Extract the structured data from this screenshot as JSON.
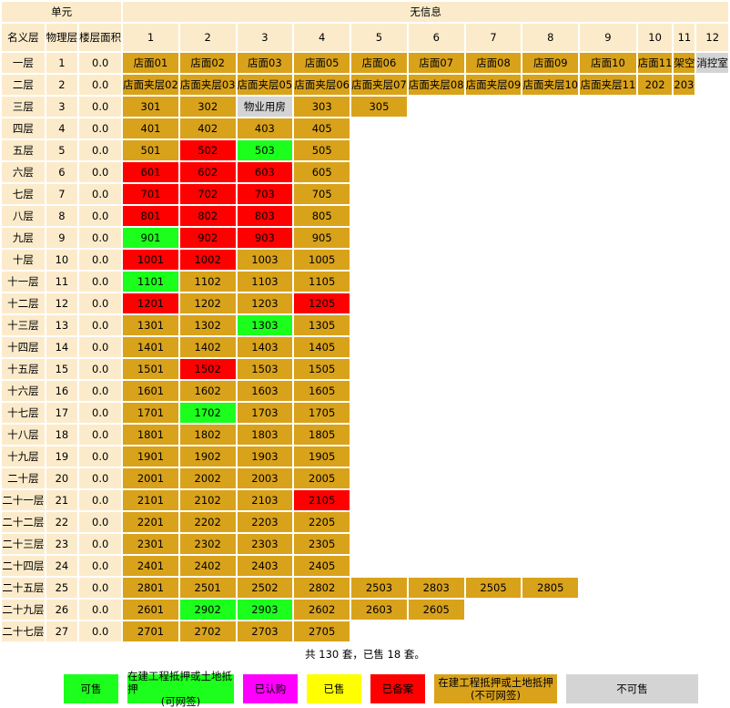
{
  "header": {
    "unit_label": "单元",
    "info_label": "无信息",
    "col_name": "名义层",
    "col_physical": "物理层",
    "col_area": "楼层面积",
    "unit_columns": [
      "1",
      "2",
      "3",
      "4",
      "5",
      "6",
      "7",
      "8",
      "9",
      "10",
      "11",
      "12"
    ]
  },
  "floors": [
    {
      "name": "一层",
      "physical": "1",
      "area": "0.0",
      "units": [
        {
          "label": "店面01",
          "status": "available"
        },
        {
          "label": "店面02",
          "status": "available"
        },
        {
          "label": "店面03",
          "status": "available"
        },
        {
          "label": "店面05",
          "status": "available"
        },
        {
          "label": "店面06",
          "status": "available"
        },
        {
          "label": "店面07",
          "status": "available"
        },
        {
          "label": "店面08",
          "status": "available"
        },
        {
          "label": "店面09",
          "status": "available"
        },
        {
          "label": "店面10",
          "status": "available"
        },
        {
          "label": "店面11",
          "status": "available"
        },
        {
          "label": "架空",
          "status": "available"
        },
        {
          "label": "消控室",
          "status": "not_for_sale"
        }
      ]
    },
    {
      "name": "二层",
      "physical": "2",
      "area": "0.0",
      "units": [
        {
          "label": "店面夹层02",
          "status": "available"
        },
        {
          "label": "店面夹层03",
          "status": "available"
        },
        {
          "label": "店面夹层05",
          "status": "available"
        },
        {
          "label": "店面夹层06",
          "status": "available"
        },
        {
          "label": "店面夹层07",
          "status": "available"
        },
        {
          "label": "店面夹层08",
          "status": "available"
        },
        {
          "label": "店面夹层09",
          "status": "available"
        },
        {
          "label": "店面夹层10",
          "status": "available"
        },
        {
          "label": "店面夹层11",
          "status": "available"
        },
        {
          "label": "202",
          "status": "available"
        },
        {
          "label": "203",
          "status": "available"
        }
      ]
    },
    {
      "name": "三层",
      "physical": "3",
      "area": "0.0",
      "units": [
        {
          "label": "301",
          "status": "available"
        },
        {
          "label": "302",
          "status": "available"
        },
        {
          "label": "物业用房",
          "status": "not_for_sale"
        },
        {
          "label": "303",
          "status": "available"
        },
        {
          "label": "305",
          "status": "available"
        }
      ]
    },
    {
      "name": "四层",
      "physical": "4",
      "area": "0.0",
      "units": [
        {
          "label": "401",
          "status": "available"
        },
        {
          "label": "402",
          "status": "available"
        },
        {
          "label": "403",
          "status": "available"
        },
        {
          "label": "405",
          "status": "available"
        }
      ]
    },
    {
      "name": "五层",
      "physical": "5",
      "area": "0.0",
      "units": [
        {
          "label": "501",
          "status": "available"
        },
        {
          "label": "502",
          "status": "registered"
        },
        {
          "label": "503",
          "status": "for_sale"
        },
        {
          "label": "505",
          "status": "available"
        }
      ]
    },
    {
      "name": "六层",
      "physical": "6",
      "area": "0.0",
      "units": [
        {
          "label": "601",
          "status": "registered"
        },
        {
          "label": "602",
          "status": "registered"
        },
        {
          "label": "603",
          "status": "registered"
        },
        {
          "label": "605",
          "status": "available"
        }
      ]
    },
    {
      "name": "七层",
      "physical": "7",
      "area": "0.0",
      "units": [
        {
          "label": "701",
          "status": "registered"
        },
        {
          "label": "702",
          "status": "registered"
        },
        {
          "label": "703",
          "status": "registered"
        },
        {
          "label": "705",
          "status": "available"
        }
      ]
    },
    {
      "name": "八层",
      "physical": "8",
      "area": "0.0",
      "units": [
        {
          "label": "801",
          "status": "registered"
        },
        {
          "label": "802",
          "status": "registered"
        },
        {
          "label": "803",
          "status": "registered"
        },
        {
          "label": "805",
          "status": "available"
        }
      ]
    },
    {
      "name": "九层",
      "physical": "9",
      "area": "0.0",
      "units": [
        {
          "label": "901",
          "status": "for_sale"
        },
        {
          "label": "902",
          "status": "registered"
        },
        {
          "label": "903",
          "status": "registered"
        },
        {
          "label": "905",
          "status": "available"
        }
      ]
    },
    {
      "name": "十层",
      "physical": "10",
      "area": "0.0",
      "units": [
        {
          "label": "1001",
          "status": "registered"
        },
        {
          "label": "1002",
          "status": "registered"
        },
        {
          "label": "1003",
          "status": "available"
        },
        {
          "label": "1005",
          "status": "available"
        }
      ]
    },
    {
      "name": "十一层",
      "physical": "11",
      "area": "0.0",
      "units": [
        {
          "label": "1101",
          "status": "for_sale"
        },
        {
          "label": "1102",
          "status": "available"
        },
        {
          "label": "1103",
          "status": "available"
        },
        {
          "label": "1105",
          "status": "available"
        }
      ]
    },
    {
      "name": "十二层",
      "physical": "12",
      "area": "0.0",
      "units": [
        {
          "label": "1201",
          "status": "registered"
        },
        {
          "label": "1202",
          "status": "available"
        },
        {
          "label": "1203",
          "status": "available"
        },
        {
          "label": "1205",
          "status": "registered"
        }
      ]
    },
    {
      "name": "十三层",
      "physical": "13",
      "area": "0.0",
      "units": [
        {
          "label": "1301",
          "status": "available"
        },
        {
          "label": "1302",
          "status": "available"
        },
        {
          "label": "1303",
          "status": "for_sale"
        },
        {
          "label": "1305",
          "status": "available"
        }
      ]
    },
    {
      "name": "十四层",
      "physical": "14",
      "area": "0.0",
      "units": [
        {
          "label": "1401",
          "status": "available"
        },
        {
          "label": "1402",
          "status": "available"
        },
        {
          "label": "1403",
          "status": "available"
        },
        {
          "label": "1405",
          "status": "available"
        }
      ]
    },
    {
      "name": "十五层",
      "physical": "15",
      "area": "0.0",
      "units": [
        {
          "label": "1501",
          "status": "available"
        },
        {
          "label": "1502",
          "status": "registered"
        },
        {
          "label": "1503",
          "status": "available"
        },
        {
          "label": "1505",
          "status": "available"
        }
      ]
    },
    {
      "name": "十六层",
      "physical": "16",
      "area": "0.0",
      "units": [
        {
          "label": "1601",
          "status": "available"
        },
        {
          "label": "1602",
          "status": "available"
        },
        {
          "label": "1603",
          "status": "available"
        },
        {
          "label": "1605",
          "status": "available"
        }
      ]
    },
    {
      "name": "十七层",
      "physical": "17",
      "area": "0.0",
      "units": [
        {
          "label": "1701",
          "status": "available"
        },
        {
          "label": "1702",
          "status": "for_sale"
        },
        {
          "label": "1703",
          "status": "available"
        },
        {
          "label": "1705",
          "status": "available"
        }
      ]
    },
    {
      "name": "十八层",
      "physical": "18",
      "area": "0.0",
      "units": [
        {
          "label": "1801",
          "status": "available"
        },
        {
          "label": "1802",
          "status": "available"
        },
        {
          "label": "1803",
          "status": "available"
        },
        {
          "label": "1805",
          "status": "available"
        }
      ]
    },
    {
      "name": "十九层",
      "physical": "19",
      "area": "0.0",
      "units": [
        {
          "label": "1901",
          "status": "available"
        },
        {
          "label": "1902",
          "status": "available"
        },
        {
          "label": "1903",
          "status": "available"
        },
        {
          "label": "1905",
          "status": "available"
        }
      ]
    },
    {
      "name": "二十层",
      "physical": "20",
      "area": "0.0",
      "units": [
        {
          "label": "2001",
          "status": "available"
        },
        {
          "label": "2002",
          "status": "available"
        },
        {
          "label": "2003",
          "status": "available"
        },
        {
          "label": "2005",
          "status": "available"
        }
      ]
    },
    {
      "name": "二十一层",
      "physical": "21",
      "area": "0.0",
      "units": [
        {
          "label": "2101",
          "status": "available"
        },
        {
          "label": "2102",
          "status": "available"
        },
        {
          "label": "2103",
          "status": "available"
        },
        {
          "label": "2105",
          "status": "registered"
        }
      ]
    },
    {
      "name": "二十二层",
      "physical": "22",
      "area": "0.0",
      "units": [
        {
          "label": "2201",
          "status": "available"
        },
        {
          "label": "2202",
          "status": "available"
        },
        {
          "label": "2203",
          "status": "available"
        },
        {
          "label": "2205",
          "status": "available"
        }
      ]
    },
    {
      "name": "二十三层",
      "physical": "23",
      "area": "0.0",
      "units": [
        {
          "label": "2301",
          "status": "available"
        },
        {
          "label": "2302",
          "status": "available"
        },
        {
          "label": "2303",
          "status": "available"
        },
        {
          "label": "2305",
          "status": "available"
        }
      ]
    },
    {
      "name": "二十四层",
      "physical": "24",
      "area": "0.0",
      "units": [
        {
          "label": "2401",
          "status": "available"
        },
        {
          "label": "2402",
          "status": "available"
        },
        {
          "label": "2403",
          "status": "available"
        },
        {
          "label": "2405",
          "status": "available"
        }
      ]
    },
    {
      "name": "二十五层",
      "physical": "25",
      "area": "0.0",
      "units": [
        {
          "label": "2801",
          "status": "available"
        },
        {
          "label": "2501",
          "status": "available"
        },
        {
          "label": "2502",
          "status": "available"
        },
        {
          "label": "2802",
          "status": "available"
        },
        {
          "label": "2503",
          "status": "available"
        },
        {
          "label": "2803",
          "status": "available"
        },
        {
          "label": "2505",
          "status": "available"
        },
        {
          "label": "2805",
          "status": "available"
        }
      ]
    },
    {
      "name": "二十九层",
      "physical": "26",
      "area": "0.0",
      "units": [
        {
          "label": "2601",
          "status": "available"
        },
        {
          "label": "2902",
          "status": "for_sale"
        },
        {
          "label": "2903",
          "status": "for_sale"
        },
        {
          "label": "2602",
          "status": "available"
        },
        {
          "label": "2603",
          "status": "available"
        },
        {
          "label": "2605",
          "status": "available"
        }
      ]
    },
    {
      "name": "二十七层",
      "physical": "27",
      "area": "0.0",
      "units": [
        {
          "label": "2701",
          "status": "available"
        },
        {
          "label": "2702",
          "status": "available"
        },
        {
          "label": "2703",
          "status": "available"
        },
        {
          "label": "2705",
          "status": "available"
        }
      ]
    }
  ],
  "summary": "共 130 套，已售 18 套。",
  "legend": [
    {
      "line1": "可售",
      "line2": "",
      "color": "#1CFF1C",
      "width": 60
    },
    {
      "line1": "在建工程抵押或土地抵押",
      "line2": "(可网签)",
      "color": "#1CFF1C",
      "width": 117
    },
    {
      "line1": "已认购",
      "line2": "",
      "color": "#FF00FF",
      "width": 60
    },
    {
      "line1": "已售",
      "line2": "",
      "color": "#FFFF00",
      "width": 60
    },
    {
      "line1": "已备案",
      "line2": "",
      "color": "#FF0000",
      "width": 60
    },
    {
      "line1": "在建工程抵押或土地抵押",
      "line2": "(不可网签)",
      "color": "#D9A21B",
      "width": 135
    },
    {
      "line1": "不可售",
      "line2": "",
      "color": "#D4D4D4",
      "width": 145
    }
  ],
  "status_classes": {
    "available": "u",
    "for_sale": "u ok",
    "registered": "u sold",
    "not_for_sale": "u na"
  }
}
